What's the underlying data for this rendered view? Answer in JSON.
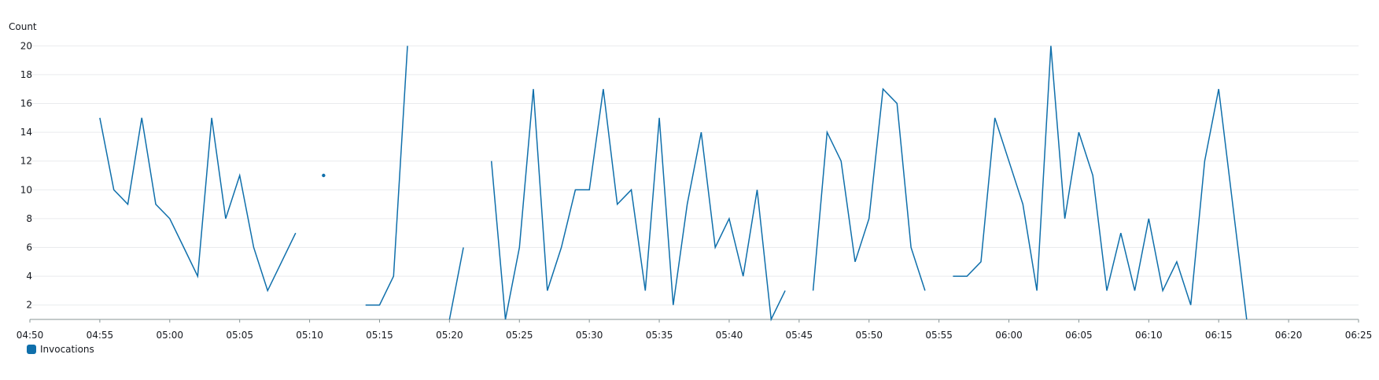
{
  "chart_data": {
    "type": "line",
    "ylabel": "Count",
    "ylim": [
      1,
      21
    ],
    "yticks": [
      2,
      4,
      6,
      8,
      10,
      12,
      14,
      16,
      18,
      20
    ],
    "xlim": [
      "04:50",
      "06:25"
    ],
    "xticks": [
      "04:50",
      "04:55",
      "05:00",
      "05:05",
      "05:10",
      "05:15",
      "05:20",
      "05:25",
      "05:30",
      "05:35",
      "05:40",
      "05:45",
      "05:50",
      "05:55",
      "06:00",
      "06:05",
      "06:10",
      "06:15",
      "06:20",
      "06:25"
    ],
    "grid": true,
    "legend_position": "bottom-left",
    "color": "#0f6fab",
    "series": [
      {
        "name": "Invocations",
        "points": [
          [
            "04:55",
            15
          ],
          [
            "04:56",
            10
          ],
          [
            "04:57",
            9
          ],
          [
            "04:58",
            15
          ],
          [
            "04:59",
            9
          ],
          [
            "05:00",
            8
          ],
          [
            "05:01",
            6
          ],
          [
            "05:02",
            4
          ],
          [
            "05:03",
            15
          ],
          [
            "05:04",
            8
          ],
          [
            "05:05",
            11
          ],
          [
            "05:06",
            6
          ],
          [
            "05:07",
            3
          ],
          [
            "05:08",
            5
          ],
          [
            "05:09",
            7
          ],
          [
            "05:11",
            11
          ],
          [
            "05:14",
            2
          ],
          [
            "05:15",
            2
          ],
          [
            "05:16",
            4
          ],
          [
            "05:17",
            20
          ],
          [
            "05:20",
            1
          ],
          [
            "05:21",
            6
          ],
          [
            "05:23",
            12
          ],
          [
            "05:24",
            1
          ],
          [
            "05:25",
            6
          ],
          [
            "05:26",
            17
          ],
          [
            "05:27",
            3
          ],
          [
            "05:28",
            6
          ],
          [
            "05:29",
            10
          ],
          [
            "05:30",
            10
          ],
          [
            "05:31",
            17
          ],
          [
            "05:32",
            9
          ],
          [
            "05:33",
            10
          ],
          [
            "05:34",
            3
          ],
          [
            "05:35",
            15
          ],
          [
            "05:36",
            2
          ],
          [
            "05:37",
            9
          ],
          [
            "05:38",
            14
          ],
          [
            "05:39",
            6
          ],
          [
            "05:40",
            8
          ],
          [
            "05:41",
            4
          ],
          [
            "05:42",
            10
          ],
          [
            "05:43",
            1
          ],
          [
            "05:44",
            3
          ],
          [
            "05:46",
            3
          ],
          [
            "05:47",
            14
          ],
          [
            "05:48",
            12
          ],
          [
            "05:49",
            5
          ],
          [
            "05:50",
            8
          ],
          [
            "05:51",
            17
          ],
          [
            "05:52",
            16
          ],
          [
            "05:53",
            6
          ],
          [
            "05:54",
            3
          ],
          [
            "05:56",
            4
          ],
          [
            "05:57",
            4
          ],
          [
            "05:58",
            5
          ],
          [
            "05:59",
            15
          ],
          [
            "06:00",
            12
          ],
          [
            "06:01",
            9
          ],
          [
            "06:02",
            3
          ],
          [
            "06:03",
            20
          ],
          [
            "06:04",
            8
          ],
          [
            "06:05",
            14
          ],
          [
            "06:06",
            11
          ],
          [
            "06:07",
            3
          ],
          [
            "06:08",
            7
          ],
          [
            "06:09",
            3
          ],
          [
            "06:10",
            8
          ],
          [
            "06:11",
            3
          ],
          [
            "06:12",
            5
          ],
          [
            "06:13",
            2
          ],
          [
            "06:14",
            12
          ],
          [
            "06:15",
            17
          ],
          [
            "06:16",
            9
          ],
          [
            "06:17",
            1
          ]
        ]
      }
    ]
  }
}
